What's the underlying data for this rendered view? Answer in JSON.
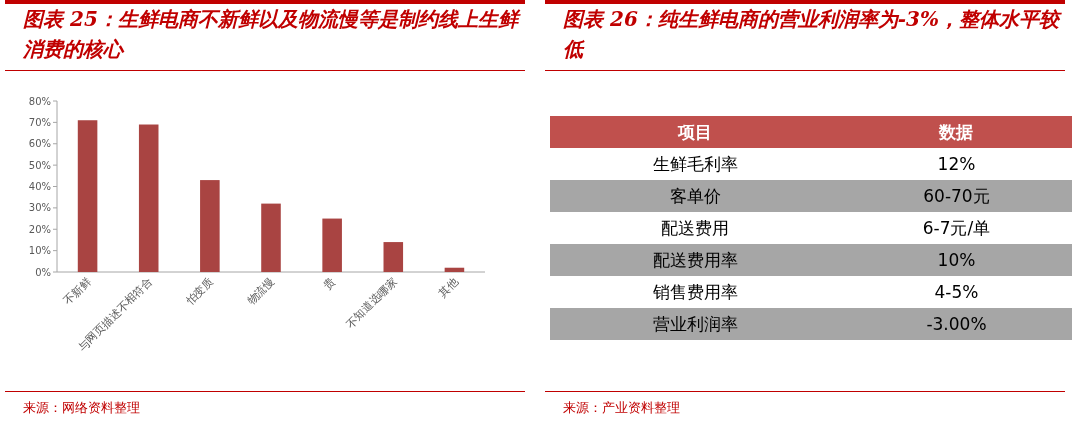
{
  "chart_data": [
    {
      "type": "bar",
      "title": "图表 25：生鲜电商不新鲜以及物流慢等是制约线上生鲜消费的核心",
      "categories": [
        "不新鲜",
        "与网页描述不相符合",
        "怕变质",
        "物流慢",
        "贵",
        "不知道选哪家",
        "其他"
      ],
      "values": [
        71,
        69,
        43,
        32,
        25,
        14,
        2
      ],
      "color": "#a94442",
      "ylim": [
        0,
        80
      ],
      "yticks": [
        {
          "value": 0,
          "label": "0%"
        },
        {
          "value": 10,
          "label": "10%"
        },
        {
          "value": 20,
          "label": "20%"
        },
        {
          "value": 30,
          "label": "30%"
        },
        {
          "value": 40,
          "label": "40%"
        },
        {
          "value": 50,
          "label": "50%"
        },
        {
          "value": 60,
          "label": "60%"
        },
        {
          "value": 70,
          "label": "70%"
        },
        {
          "value": 80,
          "label": "80%"
        }
      ],
      "annotations": [
        "来源：网络资料整理"
      ]
    },
    {
      "type": "other",
      "title": "图表 26：纯生鲜电商的营业利润率为-3%，整体水平较低",
      "categories": [
        "项目",
        "数据"
      ],
      "cell_labels": [
        [
          "生鲜毛利率",
          "12%"
        ],
        [
          "客单价",
          "60-70元"
        ],
        [
          "配送费用",
          "6-7元/单"
        ],
        [
          "配送费用率",
          "10%"
        ],
        [
          "销售费用率",
          "4-5%"
        ],
        [
          "营业利润率",
          "-3.00%"
        ]
      ],
      "annotations": [
        "来源：产业资料整理"
      ]
    }
  ]
}
